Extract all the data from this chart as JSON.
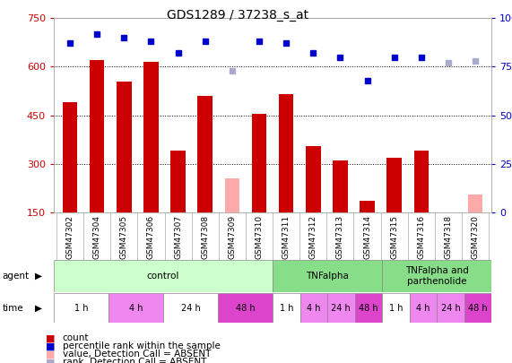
{
  "title": "GDS1289 / 37238_s_at",
  "samples": [
    "GSM47302",
    "GSM47304",
    "GSM47305",
    "GSM47306",
    "GSM47307",
    "GSM47308",
    "GSM47309",
    "GSM47310",
    "GSM47311",
    "GSM47312",
    "GSM47313",
    "GSM47314",
    "GSM47315",
    "GSM47316",
    "GSM47318",
    "GSM47320"
  ],
  "counts": [
    490,
    620,
    555,
    615,
    340,
    510,
    null,
    455,
    515,
    355,
    310,
    185,
    320,
    340,
    null,
    null
  ],
  "counts_absent": [
    null,
    null,
    null,
    null,
    null,
    null,
    255,
    null,
    null,
    null,
    null,
    null,
    null,
    null,
    130,
    205
  ],
  "percentile_rank": [
    87,
    92,
    90,
    88,
    82,
    88,
    null,
    88,
    87,
    82,
    80,
    68,
    80,
    80,
    null,
    null
  ],
  "percentile_rank_absent": [
    null,
    null,
    null,
    null,
    null,
    null,
    73,
    null,
    null,
    null,
    null,
    null,
    null,
    null,
    77,
    78
  ],
  "count_color": "#cc0000",
  "count_absent_color": "#ffaaaa",
  "rank_color": "#0000cc",
  "rank_absent_color": "#aaaacc",
  "ylim_left": [
    150,
    750
  ],
  "ylim_right": [
    0,
    100
  ],
  "yticks_left": [
    150,
    300,
    450,
    600,
    750
  ],
  "yticks_right": [
    0,
    25,
    50,
    75,
    100
  ],
  "agent_rects": [
    {
      "start": 0,
      "end": 8,
      "label": "control",
      "color": "#ccffcc"
    },
    {
      "start": 8,
      "end": 12,
      "label": "TNFalpha",
      "color": "#88dd88"
    },
    {
      "start": 12,
      "end": 16,
      "label": "TNFalpha and\nparthenolide",
      "color": "#88dd88"
    }
  ],
  "time_rects": [
    {
      "start": 0,
      "end": 2,
      "label": "1 h",
      "color": "#ffffff"
    },
    {
      "start": 2,
      "end": 4,
      "label": "4 h",
      "color": "#ee88ee"
    },
    {
      "start": 4,
      "end": 6,
      "label": "24 h",
      "color": "#ffffff"
    },
    {
      "start": 6,
      "end": 8,
      "label": "48 h",
      "color": "#dd44cc"
    },
    {
      "start": 8,
      "end": 9,
      "label": "1 h",
      "color": "#ffffff"
    },
    {
      "start": 9,
      "end": 10,
      "label": "4 h",
      "color": "#ee88ee"
    },
    {
      "start": 10,
      "end": 11,
      "label": "24 h",
      "color": "#ee88ee"
    },
    {
      "start": 11,
      "end": 12,
      "label": "48 h",
      "color": "#dd44cc"
    },
    {
      "start": 12,
      "end": 13,
      "label": "1 h",
      "color": "#ffffff"
    },
    {
      "start": 13,
      "end": 14,
      "label": "4 h",
      "color": "#ee88ee"
    },
    {
      "start": 14,
      "end": 15,
      "label": "24 h",
      "color": "#ee88ee"
    },
    {
      "start": 15,
      "end": 16,
      "label": "48 h",
      "color": "#dd44cc"
    }
  ],
  "xtick_bg": "#cccccc",
  "left_color": "#cc0000",
  "right_color": "#0000cc",
  "title_fontsize": 10,
  "bar_width": 0.55
}
